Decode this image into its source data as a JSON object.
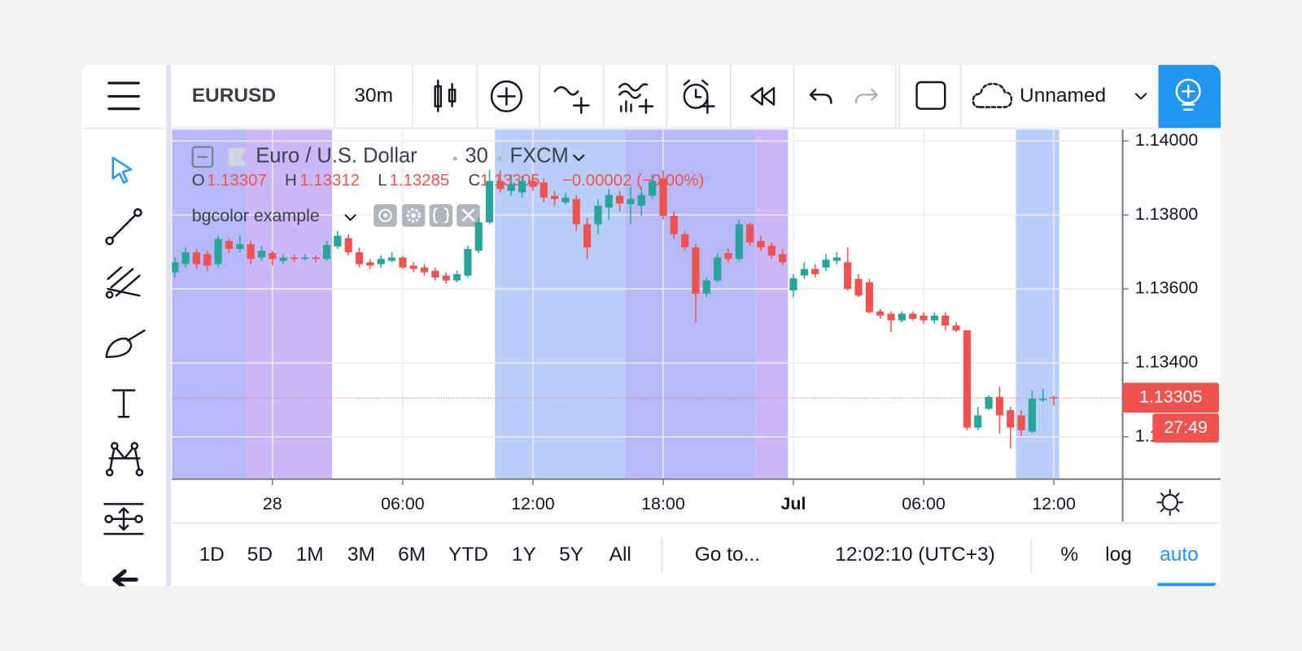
{
  "toolbar": {
    "symbol": "EURUSD",
    "interval": "30m",
    "layout_name": "Unnamed"
  },
  "legend": {
    "ohlc_labels": [
      "O",
      "H",
      "L",
      "C"
    ],
    "change": "−0.00002 (−0.00%)",
    "indicator": "bgcolor example"
  },
  "bottom_bar": {
    "ranges": [
      "1D",
      "5D",
      "1M",
      "3M",
      "6M",
      "YTD",
      "1Y",
      "5Y",
      "All"
    ],
    "goto": "Go to...",
    "clock": "12:02:10 (UTC+3)",
    "percent": "%",
    "log": "log",
    "auto": "auto"
  },
  "chart_data": {
    "type": "candlestick",
    "title": "Euro / U.S. Dollar",
    "interval": "30",
    "exchange": "FXCM",
    "countdown": "27:49",
    "up_color": "#26a69a",
    "down_color": "#ef5350",
    "grid": true,
    "categories": [
      null,
      null,
      null,
      null,
      null,
      null,
      null,
      null,
      null,
      "28",
      null,
      null,
      null,
      null,
      null,
      null,
      null,
      null,
      null,
      null,
      null,
      "06:00",
      null,
      null,
      null,
      null,
      null,
      null,
      null,
      null,
      null,
      null,
      null,
      "12:00",
      null,
      null,
      null,
      null,
      null,
      null,
      null,
      null,
      null,
      null,
      null,
      "18:00",
      null,
      null,
      null,
      null,
      null,
      null,
      null,
      null,
      null,
      null,
      null,
      "Jul",
      null,
      null,
      null,
      null,
      null,
      null,
      null,
      null,
      null,
      null,
      null,
      "06:00",
      null,
      null,
      null,
      null,
      null,
      null,
      null,
      null,
      null,
      null,
      null,
      "12:00"
    ],
    "open": [
      1.13645,
      1.13667,
      1.13699,
      1.13694,
      1.13667,
      1.1373,
      1.13708,
      1.13721,
      1.13685,
      1.13697,
      1.13676,
      1.13685,
      1.13681,
      1.13685,
      1.13681,
      1.13715,
      1.13737,
      1.13699,
      1.13672,
      1.13667,
      1.13676,
      1.13685,
      1.13663,
      1.13658,
      1.13649,
      1.13636,
      1.13623,
      1.13636,
      1.13703,
      1.1378,
      1.13892,
      1.13865,
      1.13861,
      1.13892,
      1.13888,
      1.13852,
      1.13834,
      1.13843,
      1.13775,
      1.13775,
      1.1382,
      1.13852,
      1.13829,
      1.13825,
      1.13852,
      1.13899,
      1.13798,
      1.13748,
      1.13712,
      1.13587,
      1.13623,
      1.13697,
      1.13681,
      1.13775,
      1.1373,
      1.13717,
      1.13694,
      1.13596,
      1.13636,
      1.13654,
      1.13658,
      1.13676,
      1.13672,
      1.13627,
      1.13618,
      1.13539,
      1.13533,
      1.13515,
      1.13533,
      1.13528,
      1.13515,
      1.13528,
      1.13501,
      1.13488,
      1.13225,
      1.13276,
      1.13308,
      1.13272,
      1.13258,
      1.13214,
      1.13299,
      1.13307
    ],
    "high": [
      1.13685,
      1.13712,
      1.13708,
      1.13703,
      1.13744,
      1.13737,
      1.13744,
      1.1373,
      1.13717,
      1.13703,
      1.13694,
      1.13694,
      1.13694,
      1.1369,
      1.1373,
      1.13757,
      1.13748,
      1.13712,
      1.13681,
      1.1369,
      1.13699,
      1.1369,
      1.13672,
      1.13667,
      1.13658,
      1.13645,
      1.13649,
      1.13717,
      1.13793,
      1.13921,
      1.13921,
      1.1391,
      1.13906,
      1.13906,
      1.13899,
      1.13865,
      1.13861,
      1.13854,
      1.13793,
      1.13843,
      1.1387,
      1.13865,
      1.13876,
      1.13876,
      1.1391,
      1.13921,
      1.13809,
      1.13757,
      1.13721,
      1.13631,
      1.13697,
      1.13708,
      1.13787,
      1.1378,
      1.13744,
      1.13726,
      1.13708,
      1.1364,
      1.13672,
      1.13667,
      1.13694,
      1.13699,
      1.13712,
      1.1364,
      1.13627,
      1.13546,
      1.13539,
      1.13539,
      1.13539,
      1.13537,
      1.13537,
      1.13537,
      1.1351,
      1.13488,
      1.13281,
      1.13312,
      1.13335,
      1.13281,
      1.13272,
      1.13325,
      1.1333,
      1.13312
    ],
    "low": [
      1.13631,
      1.13658,
      1.13654,
      1.13649,
      1.13658,
      1.13697,
      1.13699,
      1.13667,
      1.13676,
      1.13663,
      1.13667,
      1.13672,
      1.13676,
      1.13672,
      1.13676,
      1.13708,
      1.1369,
      1.13658,
      1.13654,
      1.13658,
      1.13672,
      1.13654,
      1.13645,
      1.13636,
      1.13623,
      1.13614,
      1.13618,
      1.13631,
      1.13697,
      1.13775,
      1.13861,
      1.13852,
      1.13847,
      1.13865,
      1.13834,
      1.13825,
      1.13829,
      1.13757,
      1.13681,
      1.13748,
      1.13787,
      1.13809,
      1.13775,
      1.13798,
      1.13843,
      1.13787,
      1.13735,
      1.13703,
      1.1351,
      1.13578,
      1.13618,
      1.13672,
      1.13676,
      1.13717,
      1.13703,
      1.13681,
      1.13663,
      1.13578,
      1.13627,
      1.13631,
      1.13649,
      1.13667,
      1.13596,
      1.13578,
      1.13533,
      1.13519,
      1.13483,
      1.1351,
      1.13515,
      1.13506,
      1.13506,
      1.13488,
      1.13483,
      1.13218,
      1.13218,
      1.13272,
      1.13209,
      1.13169,
      1.13202,
      1.13209,
      1.13294,
      1.13285
    ],
    "close": [
      1.13672,
      1.13699,
      1.13667,
      1.13663,
      1.13735,
      1.13708,
      1.13721,
      1.13681,
      1.13703,
      1.13681,
      1.13685,
      1.13681,
      1.13685,
      1.13681,
      1.13719,
      1.13744,
      1.13699,
      1.13667,
      1.13663,
      1.13681,
      1.13685,
      1.13658,
      1.13654,
      1.13645,
      1.13631,
      1.13623,
      1.1364,
      1.13708,
      1.1378,
      1.13892,
      1.1387,
      1.13883,
      1.13892,
      1.13876,
      1.13847,
      1.13843,
      1.13847,
      1.13775,
      1.13712,
      1.13825,
      1.13854,
      1.13831,
      1.13843,
      1.13854,
      1.13892,
      1.13798,
      1.13748,
      1.13712,
      1.13587,
      1.13623,
      1.13685,
      1.13681,
      1.13775,
      1.13726,
      1.13712,
      1.1369,
      1.13672,
      1.13629,
      1.13654,
      1.1364,
      1.13679,
      1.13685,
      1.136,
      1.13582,
      1.13537,
      1.13528,
      1.13515,
      1.13533,
      1.13519,
      1.13515,
      1.13528,
      1.13501,
      1.13488,
      1.13225,
      1.13258,
      1.13308,
      1.13258,
      1.13225,
      1.13218,
      1.13303,
      1.13303,
      1.13305
    ],
    "background": [
      {
        "start": 0,
        "end": 6,
        "color": "#b2b4f9"
      },
      {
        "start": 7,
        "end": 14,
        "color": "#c9b3f9"
      },
      {
        "start": 30,
        "end": 41,
        "color": "#b5ccf9"
      },
      {
        "start": 42,
        "end": 53,
        "color": "#b2b4f8"
      },
      {
        "start": 54,
        "end": 56,
        "color": "#c9b3f9"
      },
      {
        "start": 78,
        "end": 81,
        "color": "#b5ccf9"
      }
    ],
    "ylim": [
      1.13088,
      1.14031
    ],
    "yticks": [
      {
        "value": 1.14,
        "label": "1.14000"
      },
      {
        "value": 1.138,
        "label": "1.13800"
      },
      {
        "value": 1.136,
        "label": "1.13600"
      },
      {
        "value": 1.134,
        "label": "1.13400"
      },
      {
        "value": 1.132,
        "label": "1.13200"
      }
    ]
  }
}
